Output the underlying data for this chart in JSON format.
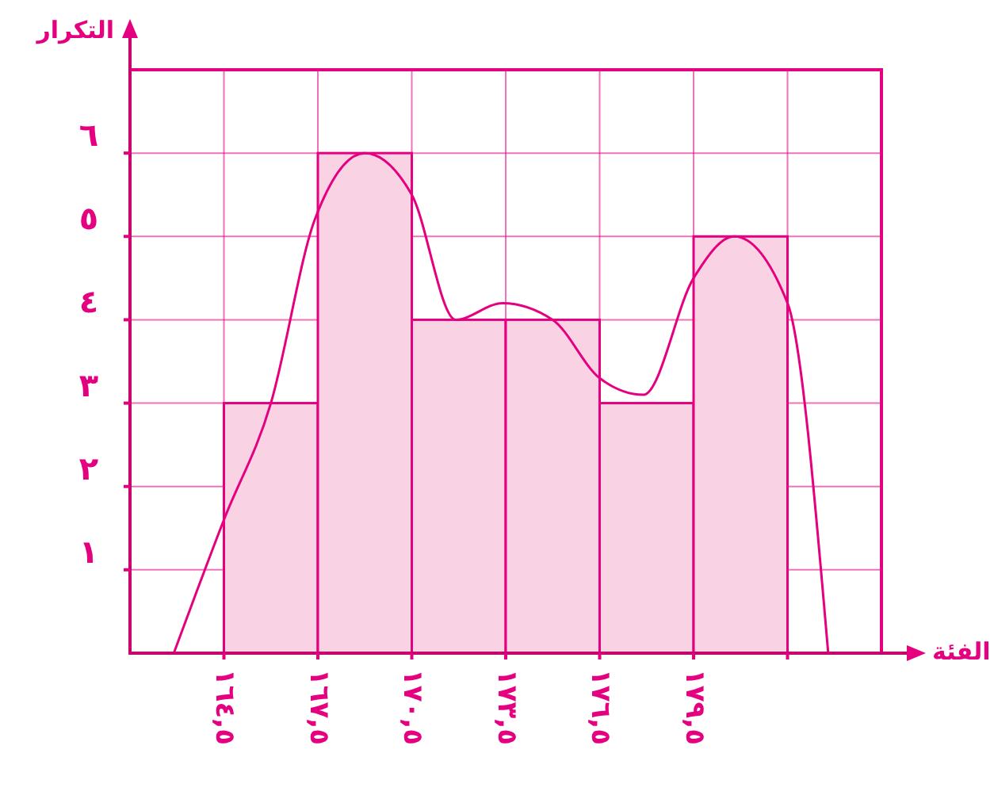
{
  "chart_data": {
    "type": "histogram",
    "xlabel": "الفئة",
    "ylabel": "التكرار",
    "bins": [
      164.5,
      167.5,
      170.5,
      173.5,
      176.5,
      179.5,
      182.5
    ],
    "values": [
      3,
      6,
      4,
      4,
      3,
      5
    ],
    "color": "#f9d2e4",
    "series": [
      {
        "type": "line",
        "color": "#e4007f",
        "x": [
          162.9,
          164.5,
          166,
          167.4,
          169,
          170.5,
          171.9,
          173.4,
          175,
          176.5,
          177.9,
          179.5,
          180.8,
          182.5,
          183.8
        ],
        "values": [
          0,
          1.6,
          3,
          5.2,
          6,
          5.5,
          4,
          4.2,
          4,
          3.3,
          3.1,
          4.5,
          5,
          4.2,
          0
        ]
      }
    ],
    "xlim": [
      161.5,
      185.5
    ],
    "xticks": [
      {
        "value": 164.5,
        "label": "١٦٤,٥"
      },
      {
        "value": 167.5,
        "label": "١٦٧,٥"
      },
      {
        "value": 170.5,
        "label": "١٧٠,٥"
      },
      {
        "value": 173.5,
        "label": "١٧٣,٥"
      },
      {
        "value": 176.5,
        "label": "١٧٦,٥"
      },
      {
        "value": 179.5,
        "label": "١٧٩,٥"
      },
      {
        "value": 182.5,
        "label": null
      }
    ],
    "ylim": [
      0,
      7
    ],
    "yticks": [
      {
        "value": 1,
        "label": "١"
      },
      {
        "value": 2,
        "label": "٢"
      },
      {
        "value": 3,
        "label": "٣"
      },
      {
        "value": 4,
        "label": "٤"
      },
      {
        "value": 5,
        "label": "٥"
      },
      {
        "value": 6,
        "label": "٦"
      }
    ],
    "grid": true
  }
}
